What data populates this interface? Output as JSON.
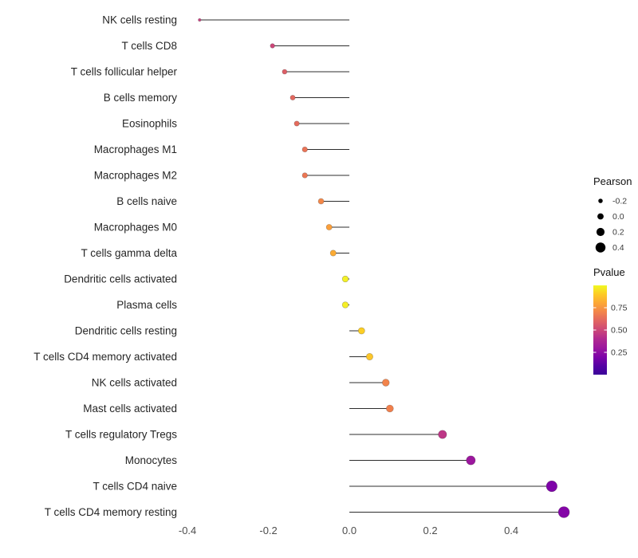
{
  "chart_data": {
    "type": "lollipop",
    "title": "",
    "xlabel": "",
    "ylabel": "",
    "x_ticks": [
      "-0.4",
      "-0.2",
      "0.0",
      "0.2",
      "0.4"
    ],
    "x_tick_values": [
      -0.4,
      -0.2,
      0.0,
      0.2,
      0.4
    ],
    "xlim": [
      -0.41,
      0.585
    ],
    "background": "#ffffff",
    "stem_color": "#2d2d2d",
    "points": [
      {
        "label": "NK cells resting",
        "pearson": -0.37,
        "pvalue": 0.45,
        "color": "#c5407e"
      },
      {
        "label": "T cells CD8",
        "pearson": -0.19,
        "pvalue": 0.47,
        "color": "#cc4778"
      },
      {
        "label": "T cells follicular helper",
        "pearson": -0.16,
        "pvalue": 0.55,
        "color": "#dd5e66"
      },
      {
        "label": "B cells memory",
        "pearson": -0.14,
        "pvalue": 0.58,
        "color": "#e2685f"
      },
      {
        "label": "Eosinophils",
        "pearson": -0.13,
        "pvalue": 0.59,
        "color": "#e56b5d"
      },
      {
        "label": "Macrophages M1",
        "pearson": -0.11,
        "pvalue": 0.63,
        "color": "#ea7457"
      },
      {
        "label": "Macrophages M2",
        "pearson": -0.11,
        "pvalue": 0.64,
        "color": "#eb7653"
      },
      {
        "label": "B cells naive",
        "pearson": -0.07,
        "pvalue": 0.72,
        "color": "#f48849"
      },
      {
        "label": "Macrophages M0",
        "pearson": -0.05,
        "pvalue": 0.79,
        "color": "#fb9f3a"
      },
      {
        "label": "T cells gamma delta",
        "pearson": -0.04,
        "pvalue": 0.82,
        "color": "#fcab33"
      },
      {
        "label": "Dendritic cells activated",
        "pearson": -0.01,
        "pvalue": 0.97,
        "color": "#f3f027"
      },
      {
        "label": "Plasma cells",
        "pearson": -0.01,
        "pvalue": 0.96,
        "color": "#f5ee26"
      },
      {
        "label": "Dendritic cells resting",
        "pearson": 0.03,
        "pvalue": 0.9,
        "color": "#fcce25"
      },
      {
        "label": "T cells CD4 memory activated",
        "pearson": 0.05,
        "pvalue": 0.87,
        "color": "#fcc62a"
      },
      {
        "label": "NK cells activated",
        "pearson": 0.09,
        "pvalue": 0.7,
        "color": "#f2844b"
      },
      {
        "label": "Mast cells activated",
        "pearson": 0.1,
        "pvalue": 0.68,
        "color": "#f07f4c"
      },
      {
        "label": "T cells regulatory  Tregs",
        "pearson": 0.23,
        "pvalue": 0.38,
        "color": "#bd3786"
      },
      {
        "label": "Monocytes",
        "pearson": 0.3,
        "pvalue": 0.22,
        "color": "#9c179e"
      },
      {
        "label": "T cells CD4 naive",
        "pearson": 0.5,
        "pvalue": 0.06,
        "color": "#7e03a8"
      },
      {
        "label": "T cells CD4 memory resting",
        "pearson": 0.53,
        "pvalue": 0.04,
        "color": "#8405a7"
      }
    ],
    "legend_size": {
      "title": "Pearson",
      "entries": [
        {
          "label": "-0.2",
          "value": -0.2
        },
        {
          "label": "0.0",
          "value": 0.0
        },
        {
          "label": "0.2",
          "value": 0.2
        },
        {
          "label": "0.4",
          "value": 0.4
        }
      ]
    },
    "legend_color": {
      "title": "Pvalue",
      "ticks": [
        {
          "label": "0.75",
          "value": 0.75
        },
        {
          "label": "0.50",
          "value": 0.5
        },
        {
          "label": "0.25",
          "value": 0.25
        }
      ],
      "domain": [
        1,
        0
      ],
      "gradient": [
        "#f0f921",
        "#fdca26",
        "#fca636",
        "#f2844b",
        "#e16462",
        "#cc4778",
        "#b12a90",
        "#9c179e",
        "#7e03a8",
        "#5601a4",
        "#3a049a"
      ]
    }
  }
}
